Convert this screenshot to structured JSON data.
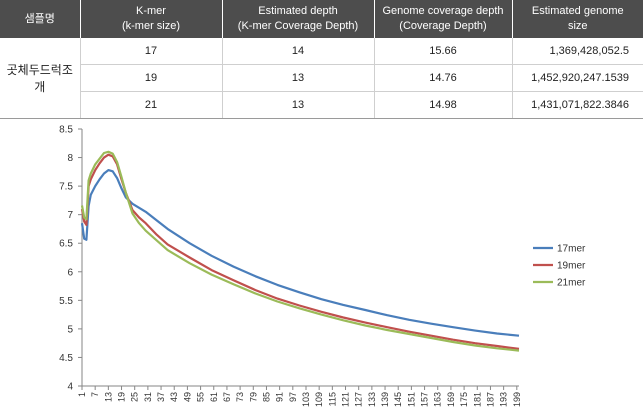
{
  "table": {
    "headers": [
      "샘플명",
      "K-mer\n(k-mer size)",
      "Estimated depth\n(K-mer Coverage Depth)",
      "Genome coverage depth\n(Coverage Depth)",
      "Estimated genome\nsize"
    ],
    "sample_name": "곳체두드럭조개",
    "rows": [
      [
        "17",
        "14",
        "15.66",
        "1,369,428,052.5"
      ],
      [
        "19",
        "13",
        "14.76",
        "1,452,920,247.1539"
      ],
      [
        "21",
        "13",
        "14.98",
        "1,431,071,822.3846"
      ]
    ]
  },
  "chart_data": {
    "type": "line",
    "ylim": [
      4,
      8.5
    ],
    "yticks": [
      4,
      4.5,
      5,
      5.5,
      6,
      6.5,
      7,
      7.5,
      8,
      8.5
    ],
    "xlim": [
      1,
      200
    ],
    "xticks": [
      1,
      7,
      13,
      19,
      25,
      31,
      37,
      43,
      49,
      55,
      61,
      67,
      73,
      79,
      85,
      91,
      97,
      103,
      109,
      115,
      121,
      127,
      133,
      139,
      145,
      151,
      157,
      163,
      169,
      175,
      181,
      187,
      193,
      199
    ],
    "legend_position": "right",
    "grid": false,
    "series": [
      {
        "name": "17mer",
        "color": "#4a7ebb",
        "points": [
          [
            1,
            6.85
          ],
          [
            2,
            6.58
          ],
          [
            3,
            6.56
          ],
          [
            4,
            7.15
          ],
          [
            5,
            7.35
          ],
          [
            7,
            7.5
          ],
          [
            9,
            7.62
          ],
          [
            11,
            7.72
          ],
          [
            13,
            7.78
          ],
          [
            15,
            7.76
          ],
          [
            17,
            7.64
          ],
          [
            19,
            7.46
          ],
          [
            21,
            7.3
          ],
          [
            24,
            7.19
          ],
          [
            27,
            7.12
          ],
          [
            30,
            7.05
          ],
          [
            35,
            6.9
          ],
          [
            40,
            6.75
          ],
          [
            50,
            6.5
          ],
          [
            60,
            6.28
          ],
          [
            70,
            6.09
          ],
          [
            80,
            5.92
          ],
          [
            90,
            5.77
          ],
          [
            100,
            5.64
          ],
          [
            110,
            5.52
          ],
          [
            120,
            5.42
          ],
          [
            130,
            5.33
          ],
          [
            140,
            5.24
          ],
          [
            150,
            5.16
          ],
          [
            160,
            5.09
          ],
          [
            170,
            5.03
          ],
          [
            180,
            4.97
          ],
          [
            190,
            4.92
          ],
          [
            200,
            4.88
          ]
        ]
      },
      {
        "name": "19mer",
        "color": "#c0504d",
        "points": [
          [
            1,
            7.1
          ],
          [
            2,
            6.88
          ],
          [
            3,
            6.82
          ],
          [
            4,
            7.5
          ],
          [
            5,
            7.62
          ],
          [
            7,
            7.78
          ],
          [
            9,
            7.9
          ],
          [
            11,
            8.0
          ],
          [
            13,
            8.05
          ],
          [
            15,
            8.02
          ],
          [
            17,
            7.88
          ],
          [
            19,
            7.62
          ],
          [
            21,
            7.38
          ],
          [
            24,
            7.08
          ],
          [
            27,
            6.95
          ],
          [
            30,
            6.85
          ],
          [
            35,
            6.65
          ],
          [
            40,
            6.48
          ],
          [
            50,
            6.25
          ],
          [
            60,
            6.03
          ],
          [
            70,
            5.85
          ],
          [
            80,
            5.68
          ],
          [
            90,
            5.53
          ],
          [
            100,
            5.41
          ],
          [
            110,
            5.3
          ],
          [
            120,
            5.2
          ],
          [
            130,
            5.11
          ],
          [
            140,
            5.03
          ],
          [
            150,
            4.95
          ],
          [
            160,
            4.88
          ],
          [
            170,
            4.81
          ],
          [
            180,
            4.75
          ],
          [
            190,
            4.7
          ],
          [
            200,
            4.65
          ]
        ]
      },
      {
        "name": "21mer",
        "color": "#9bbb59",
        "points": [
          [
            1,
            7.16
          ],
          [
            2,
            6.95
          ],
          [
            3,
            6.92
          ],
          [
            4,
            7.6
          ],
          [
            5,
            7.72
          ],
          [
            7,
            7.88
          ],
          [
            9,
            7.98
          ],
          [
            11,
            8.08
          ],
          [
            13,
            8.1
          ],
          [
            15,
            8.07
          ],
          [
            17,
            7.92
          ],
          [
            19,
            7.66
          ],
          [
            21,
            7.38
          ],
          [
            24,
            7.02
          ],
          [
            27,
            6.85
          ],
          [
            30,
            6.72
          ],
          [
            35,
            6.55
          ],
          [
            40,
            6.38
          ],
          [
            50,
            6.15
          ],
          [
            60,
            5.95
          ],
          [
            70,
            5.78
          ],
          [
            80,
            5.62
          ],
          [
            90,
            5.48
          ],
          [
            100,
            5.36
          ],
          [
            110,
            5.25
          ],
          [
            120,
            5.15
          ],
          [
            130,
            5.06
          ],
          [
            140,
            4.98
          ],
          [
            150,
            4.91
          ],
          [
            160,
            4.84
          ],
          [
            170,
            4.77
          ],
          [
            180,
            4.71
          ],
          [
            190,
            4.66
          ],
          [
            200,
            4.62
          ]
        ]
      }
    ]
  }
}
